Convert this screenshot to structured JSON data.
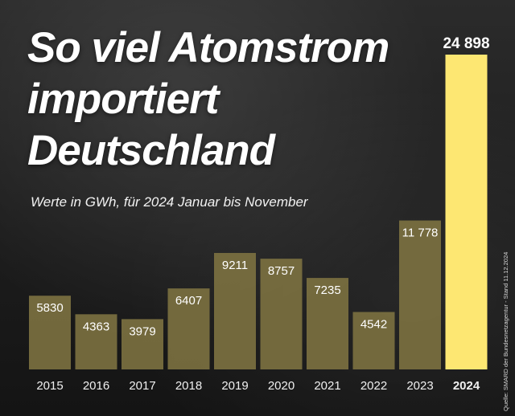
{
  "title_lines": [
    "So viel Atomstrom",
    "importiert",
    "Deutschland"
  ],
  "subtitle": "Werte in GWh, für 2024 Januar bis November",
  "source": "Quelle: SMARD der Bundesnetzagentur - Stand 11.12.2024",
  "colors": {
    "bar": "#7b7040",
    "highlight": "#fde772",
    "background": "#1e1e1e"
  },
  "chart_data": {
    "type": "bar",
    "title": "So viel Atomstrom importiert Deutschland",
    "subtitle": "Werte in GWh, für 2024 Januar bis November",
    "xlabel": "",
    "ylabel": "",
    "unit": "GWh",
    "categories": [
      "2015",
      "2016",
      "2017",
      "2018",
      "2019",
      "2020",
      "2021",
      "2022",
      "2023",
      "2024"
    ],
    "values": [
      5830,
      4363,
      3979,
      6407,
      9211,
      8757,
      7235,
      4542,
      11778,
      24898
    ],
    "value_labels": [
      "5830",
      "4363",
      "3979",
      "6407",
      "9211",
      "8757",
      "7235",
      "4542",
      "11 778",
      "24 898"
    ],
    "highlight_category": "2024",
    "ylim": [
      0,
      24898
    ],
    "grid": false,
    "legend": "none"
  }
}
